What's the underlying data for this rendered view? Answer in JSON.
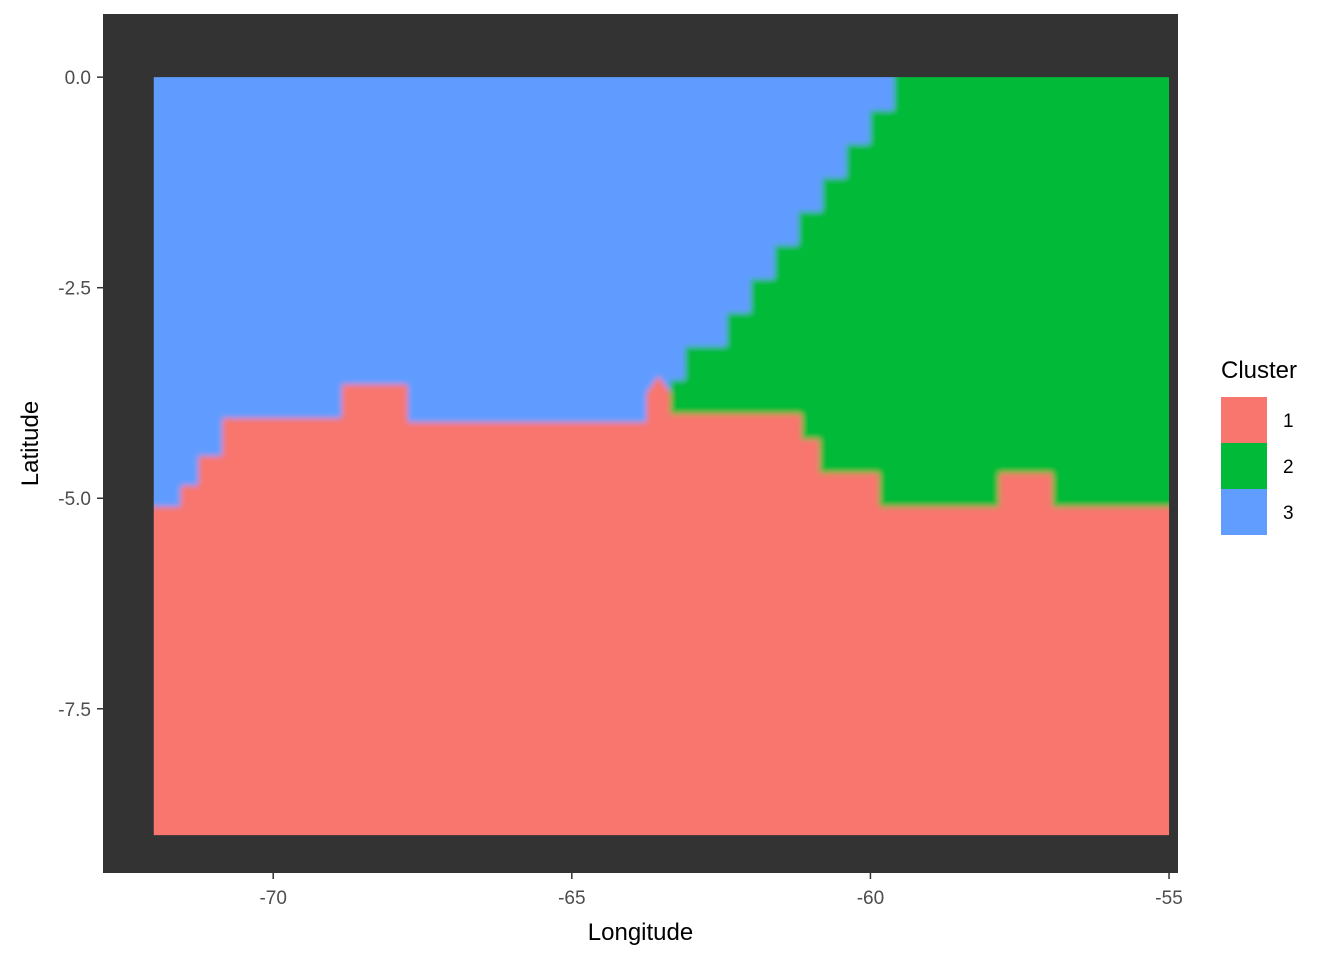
{
  "chart_data": {
    "type": "heatmap",
    "title": "",
    "xlabel": "Longitude",
    "ylabel": "Latitude",
    "xlim": [
      -72.85,
      -54.85
    ],
    "ylim": [
      -9.45,
      0.75
    ],
    "panel_background": "#333333",
    "grid": false,
    "x_ticks": [
      -70,
      -65,
      -60,
      -55
    ],
    "x_tick_labels": [
      "-70",
      "-65",
      "-60",
      "-55"
    ],
    "y_ticks": [
      0.0,
      -2.5,
      -5.0,
      -7.5
    ],
    "y_tick_labels": [
      "0.0",
      "-2.5",
      "-5.0",
      "-7.5"
    ],
    "raster_extent": {
      "x": [
        -72,
        -55
      ],
      "y": [
        -9,
        0
      ]
    },
    "legend": {
      "title": "Cluster",
      "placement": "right",
      "items": [
        {
          "label": "1",
          "color": "#F8766D"
        },
        {
          "label": "2",
          "color": "#00BA38"
        },
        {
          "label": "3",
          "color": "#619CFF"
        }
      ]
    },
    "regions": [
      {
        "cluster": "1",
        "color": "#F8766D",
        "boundary": [
          [
            -72,
            -9
          ],
          [
            -55,
            -9
          ],
          [
            -55,
            -5.1
          ],
          [
            -56.95,
            -5.1
          ],
          [
            -56.95,
            -4.7
          ],
          [
            -57.85,
            -4.7
          ],
          [
            -57.85,
            -5.1
          ],
          [
            -59.85,
            -5.1
          ],
          [
            -59.85,
            -4.7
          ],
          [
            -60.85,
            -4.7
          ],
          [
            -60.85,
            -4.3
          ],
          [
            -61.15,
            -4.3
          ],
          [
            -61.15,
            -4.0
          ],
          [
            -63.35,
            -4.0
          ],
          [
            -63.35,
            -3.75
          ],
          [
            -63.55,
            -3.55
          ],
          [
            -63.75,
            -3.75
          ],
          [
            -63.75,
            -4.1
          ],
          [
            -67.75,
            -4.1
          ],
          [
            -67.75,
            -3.65
          ],
          [
            -68.85,
            -3.65
          ],
          [
            -68.85,
            -4.05
          ],
          [
            -70.85,
            -4.05
          ],
          [
            -70.85,
            -4.5
          ],
          [
            -71.25,
            -4.5
          ],
          [
            -71.25,
            -4.85
          ],
          [
            -71.55,
            -4.85
          ],
          [
            -71.55,
            -5.1
          ],
          [
            -72,
            -5.1
          ]
        ]
      },
      {
        "cluster": "2",
        "color": "#00BA38",
        "boundary": [
          [
            -59.6,
            0
          ],
          [
            -55,
            0
          ],
          [
            -55,
            -5.1
          ],
          [
            -56.95,
            -5.1
          ],
          [
            -56.95,
            -4.7
          ],
          [
            -57.85,
            -4.7
          ],
          [
            -57.85,
            -5.1
          ],
          [
            -59.85,
            -5.1
          ],
          [
            -59.85,
            -4.7
          ],
          [
            -60.85,
            -4.7
          ],
          [
            -60.85,
            -4.3
          ],
          [
            -61.15,
            -4.3
          ],
          [
            -61.15,
            -4.0
          ],
          [
            -63.35,
            -4.0
          ],
          [
            -63.35,
            -3.6
          ],
          [
            -63.1,
            -3.6
          ],
          [
            -63.1,
            -3.2
          ],
          [
            -62.4,
            -3.2
          ],
          [
            -62.4,
            -2.8
          ],
          [
            -62.0,
            -2.8
          ],
          [
            -62.0,
            -2.4
          ],
          [
            -61.6,
            -2.4
          ],
          [
            -61.6,
            -2.0
          ],
          [
            -61.2,
            -2.0
          ],
          [
            -61.2,
            -1.6
          ],
          [
            -60.8,
            -1.6
          ],
          [
            -60.8,
            -1.2
          ],
          [
            -60.4,
            -1.2
          ],
          [
            -60.4,
            -0.8
          ],
          [
            -60.0,
            -0.8
          ],
          [
            -60.0,
            -0.4
          ],
          [
            -59.6,
            -0.4
          ]
        ]
      }
    ]
  }
}
